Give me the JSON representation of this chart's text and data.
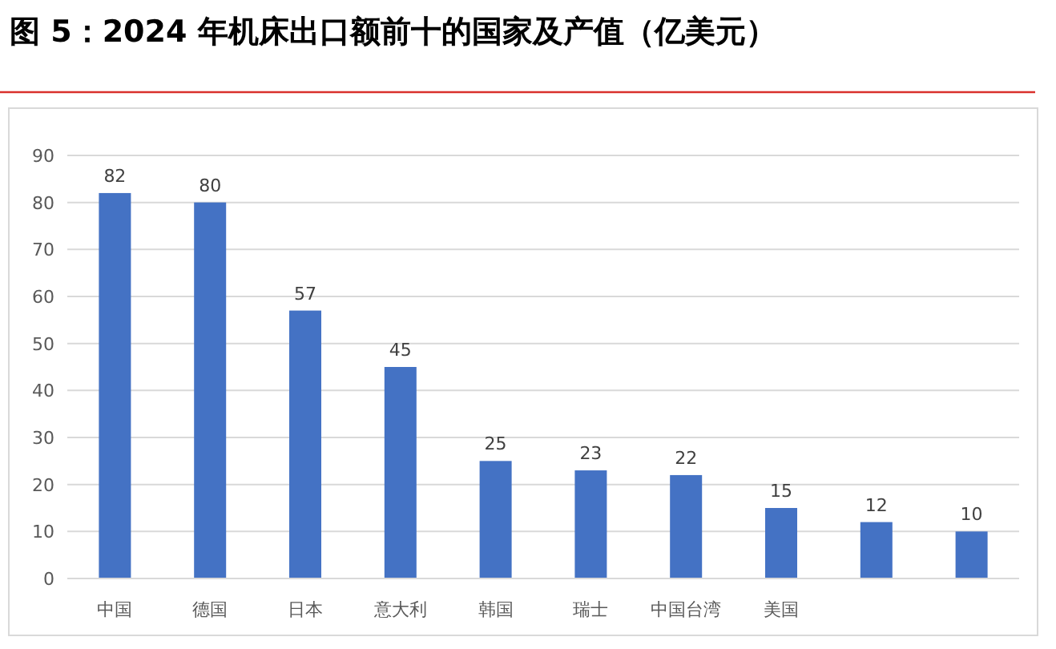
{
  "chart_data": {
    "type": "bar",
    "title": "图 5：2024 年机床出口额前十的国家及产值（亿美元）",
    "categories": [
      "中国",
      "德国",
      "日本",
      "意大利",
      "韩国",
      "瑞士",
      "中国台湾",
      "美国",
      null,
      null
    ],
    "values": [
      82,
      80,
      57,
      45,
      25,
      23,
      22,
      15,
      12,
      10
    ],
    "color": "#4472c4",
    "ylim": [
      0,
      90
    ],
    "yticks": [
      0,
      10,
      20,
      30,
      40,
      50,
      60,
      70,
      80,
      90
    ],
    "grid": "y",
    "data_labels": true
  }
}
